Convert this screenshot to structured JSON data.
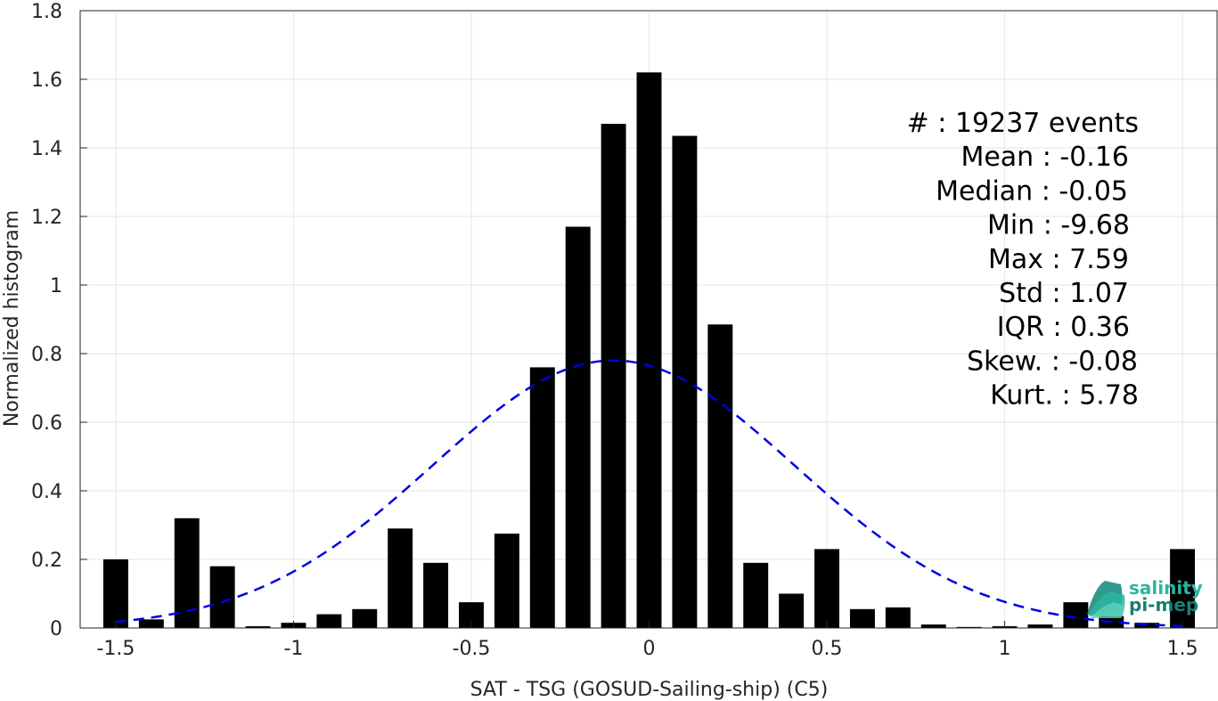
{
  "chart_data": {
    "type": "bar",
    "xlabel": "SAT - TSG (GOSUD-Sailing-ship) (C5)",
    "ylabel": "Normalized histogram",
    "xlim": [
      -1.6,
      1.6
    ],
    "ylim": [
      0,
      1.8
    ],
    "grid": true,
    "x_ticks": [
      -1.5,
      -1,
      -0.5,
      0,
      0.5,
      1,
      1.5
    ],
    "x_tick_labels": [
      "-1.5",
      "-1",
      "-0.5",
      "0",
      "0.5",
      "1",
      "1.5"
    ],
    "y_ticks": [
      0,
      0.2,
      0.4,
      0.6,
      0.8,
      1,
      1.2,
      1.4,
      1.6,
      1.8
    ],
    "y_tick_labels": [
      "0",
      "0.2",
      "0.4",
      "0.6",
      "0.8",
      "1",
      "1.2",
      "1.4",
      "1.6",
      "1.8"
    ],
    "bin_width": 0.1,
    "x": [
      -1.5,
      -1.4,
      -1.3,
      -1.2,
      -1.1,
      -1.0,
      -0.9,
      -0.8,
      -0.7,
      -0.6,
      -0.5,
      -0.4,
      -0.3,
      -0.2,
      -0.1,
      0.0,
      0.1,
      0.2,
      0.3,
      0.4,
      0.5,
      0.6,
      0.7,
      0.8,
      0.9,
      1.0,
      1.1,
      1.2,
      1.3,
      1.4,
      1.5
    ],
    "values": [
      0.2,
      0.025,
      0.32,
      0.18,
      0.005,
      0.015,
      0.04,
      0.055,
      0.29,
      0.19,
      0.075,
      0.275,
      0.76,
      1.17,
      1.47,
      1.62,
      1.435,
      0.885,
      0.19,
      0.1,
      0.23,
      0.055,
      0.06,
      0.01,
      0.003,
      0.005,
      0.01,
      0.075,
      0.035,
      0.015,
      0.23
    ],
    "bar_color": "#000000",
    "fit_curve": {
      "style": "dashed",
      "color": "#0000e6",
      "mean": -0.1,
      "std": 0.51,
      "peak": 0.78,
      "x_range": [
        -1.5,
        1.5
      ]
    },
    "stats_lines": [
      "#  : 19237 events",
      "Mean : -0.16",
      "Median : -0.05",
      "Min : -9.68",
      "Max : 7.59",
      "Std : 1.07",
      "IQR : 0.36",
      "Skew. : -0.08",
      "Kurt. : 5.78"
    ]
  },
  "logo": {
    "line1": "salinity",
    "line2": "pi-mep",
    "color1": "#2bb5a0",
    "color2": "#1a7f73"
  }
}
